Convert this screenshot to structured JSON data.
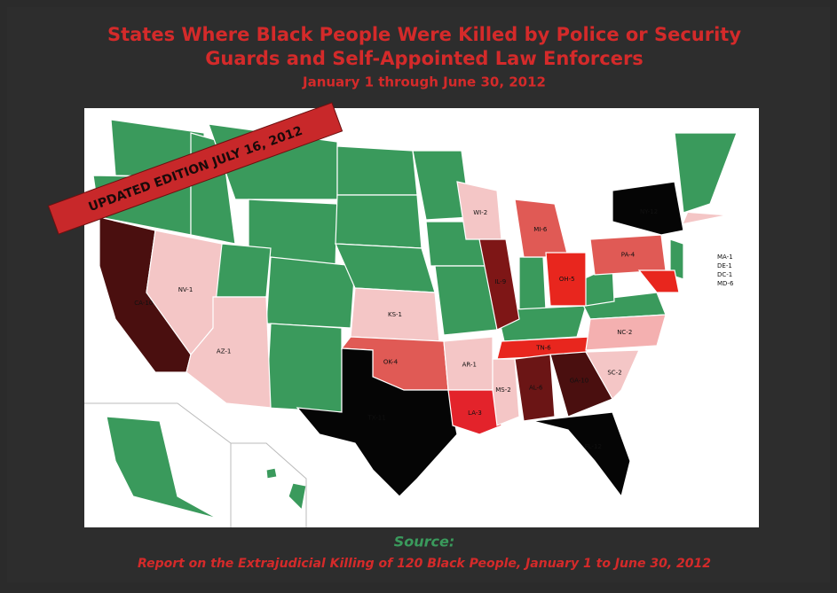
{
  "title_lines": [
    "States Where Black People Were Killed by Police or Security",
    "Guards and Self-Appointed Law Enforcers"
  ],
  "subtitle": "January 1 through June 30, 2012",
  "banner": "UPDATED EDITION JULY 16, 2012",
  "states": [
    {
      "label": "CA-10",
      "color": "#4a0f0f"
    },
    {
      "label": "NV-1",
      "color": "#f4c6c6"
    },
    {
      "label": "AZ-1",
      "color": "#f4c6c6"
    },
    {
      "label": "KS-1",
      "color": "#f4c6c6"
    },
    {
      "label": "OK-4",
      "color": "#e05a55"
    },
    {
      "label": "TX-11",
      "color": "#050505"
    },
    {
      "label": "AR-1",
      "color": "#f4c6c6"
    },
    {
      "label": "LA-3",
      "color": "#e3232b"
    },
    {
      "label": "WI-2",
      "color": "#f4c6c6"
    },
    {
      "label": "IL-9",
      "color": "#7e1616"
    },
    {
      "label": "MI-6",
      "color": "#e05a55"
    },
    {
      "label": "OH-5",
      "color": "#e8261e"
    },
    {
      "label": "TN-6",
      "color": "#e8261e"
    },
    {
      "label": "MS-2",
      "color": "#f4c6c6"
    },
    {
      "label": "AL-6",
      "color": "#6b1515"
    },
    {
      "label": "GA-10",
      "color": "#4a0f0f"
    },
    {
      "label": "FL-12",
      "color": "#050505"
    },
    {
      "label": "SC-2",
      "color": "#f4c6c6"
    },
    {
      "label": "NC-2",
      "color": "#f4b0b0"
    },
    {
      "label": "PA-4",
      "color": "#e05a55"
    },
    {
      "label": "NY-12",
      "color": "#050505"
    },
    {
      "label": "",
      "color": "#e8261e"
    }
  ],
  "side_list": [
    "MA-1",
    "DE-1",
    "DC-1",
    "MD-6"
  ],
  "source_label": "Source:",
  "source_text": "Report on the Extrajudicial Killing of 120 Black People, January 1 to June 30, 2012"
}
